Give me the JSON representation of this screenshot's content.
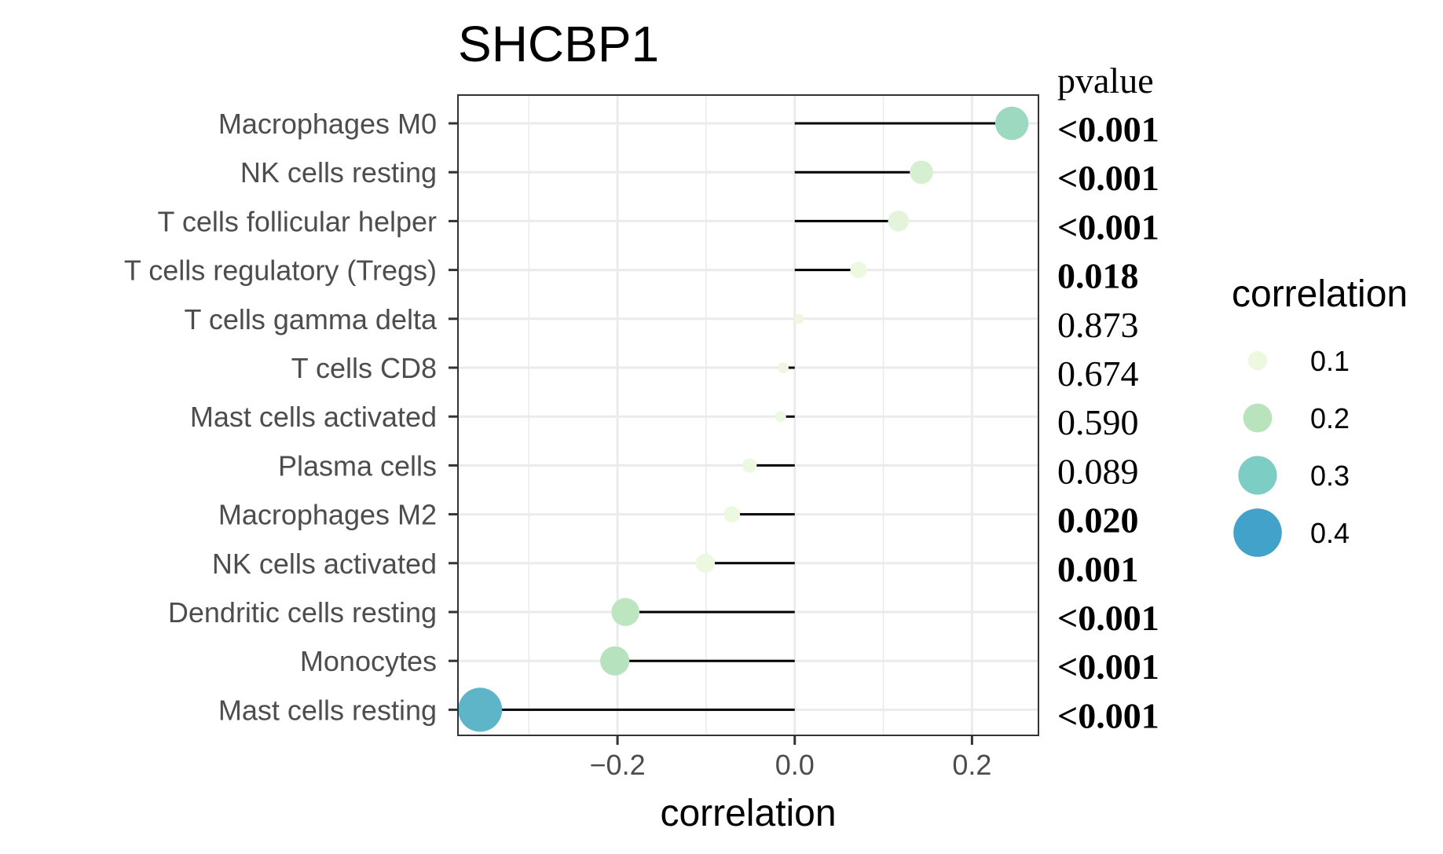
{
  "chart_data": {
    "type": "lollipop",
    "title": "SHCBP1",
    "xlabel": "correlation",
    "ylabel": "",
    "xlim": [
      -0.38,
      0.275
    ],
    "xticks": [
      -0.2,
      0.0,
      0.2
    ],
    "xtick_labels": [
      "−0.2",
      "0.0",
      "0.2"
    ],
    "grid": true,
    "pvalue_header": "pvalue",
    "categories": [
      "Macrophages M0",
      "NK cells resting",
      "T cells follicular helper",
      "T cells regulatory (Tregs)",
      "T cells gamma delta",
      "T cells CD8",
      "Mast cells activated",
      "Plasma cells",
      "Macrophages M2",
      "NK cells activated",
      "Dendritic cells resting",
      "Monocytes",
      "Mast cells resting"
    ],
    "values": [
      0.245,
      0.143,
      0.117,
      0.072,
      0.005,
      -0.013,
      -0.016,
      -0.051,
      -0.071,
      -0.101,
      -0.191,
      -0.203,
      -0.355
    ],
    "pvalues": [
      "<0.001",
      "<0.001",
      "<0.001",
      "0.018",
      "0.873",
      "0.674",
      "0.590",
      "0.089",
      "0.020",
      "0.001",
      "<0.001",
      "<0.001",
      "<0.001"
    ],
    "pvalue_bold": [
      true,
      true,
      true,
      true,
      false,
      false,
      false,
      false,
      true,
      true,
      true,
      true,
      true
    ],
    "legend": {
      "title": "correlation",
      "position": "right",
      "entries": [
        {
          "label": "0.1",
          "value": 0.1,
          "color": "#edf8e0"
        },
        {
          "label": "0.2",
          "value": 0.2,
          "color": "#b8e3bd"
        },
        {
          "label": "0.3",
          "value": 0.3,
          "color": "#7ccdc4"
        },
        {
          "label": "0.4",
          "value": 0.4,
          "color": "#43a2ca"
        }
      ]
    },
    "colors": {
      "stem": "#000000",
      "grid": "#ebebeb",
      "panel_border": "#333333"
    }
  }
}
